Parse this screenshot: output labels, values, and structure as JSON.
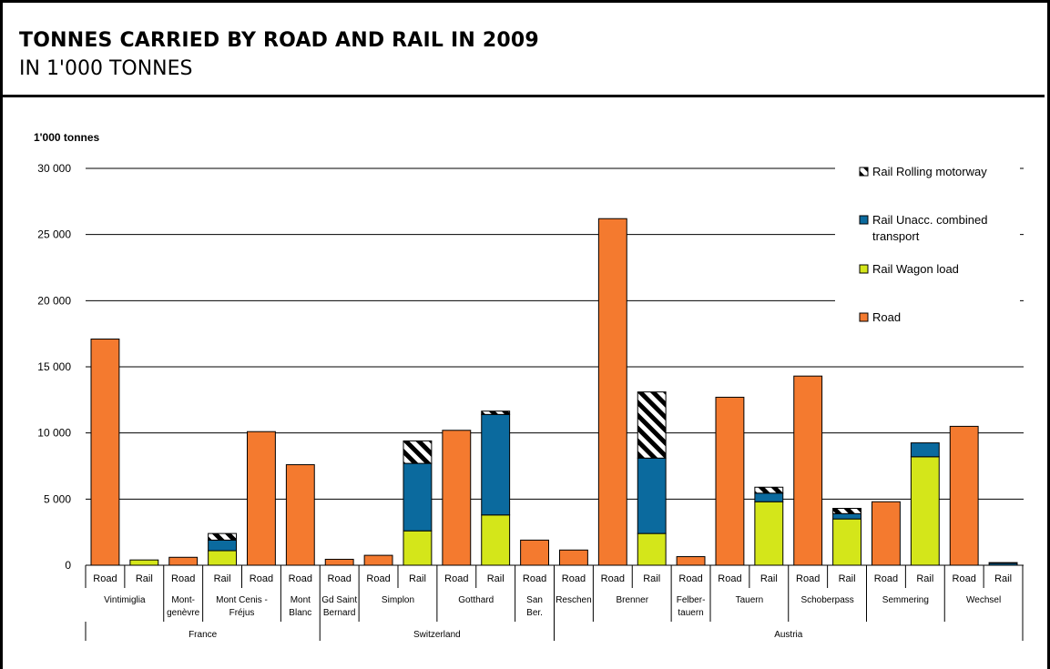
{
  "header": {
    "title": "TONNES CARRIED BY ROAD AND RAIL IN 2009",
    "subtitle": "IN 1'000 TONNES"
  },
  "chart_data": {
    "type": "bar",
    "stacked": true,
    "unit_label": "1'000 tonnes",
    "ylim": [
      0,
      30000
    ],
    "yticks": [
      0,
      5000,
      10000,
      15000,
      20000,
      25000,
      30000
    ],
    "ytick_labels": [
      "0",
      "5 000",
      "10 000",
      "15 000",
      "20 000",
      "25 000",
      "30 000"
    ],
    "grid": true,
    "legend_position": "right",
    "legend": [
      {
        "key": "rolling",
        "label": "Rail Rolling motorway"
      },
      {
        "key": "unacc",
        "label": "Rail Unacc. combined transport"
      },
      {
        "key": "wagon",
        "label": "Rail Wagon load"
      },
      {
        "key": "road",
        "label": "Road"
      }
    ],
    "colors": {
      "road": "#f47a2f",
      "wagon": "#d4e61a",
      "unacc": "#0b6a9e",
      "rolling": "hatch-black-white"
    },
    "bars": [
      {
        "label": "Road",
        "road": 17100
      },
      {
        "label": "Rail",
        "wagon": 400
      },
      {
        "label": "Road",
        "road": 600
      },
      {
        "label": "Rail",
        "wagon": 1100,
        "unacc": 800,
        "rolling": 500
      },
      {
        "label": "Road",
        "road": 10100
      },
      {
        "label": "Road",
        "road": 7600
      },
      {
        "label": "Road",
        "road": 450
      },
      {
        "label": "Road",
        "road": 750
      },
      {
        "label": "Rail",
        "wagon": 2600,
        "unacc": 5100,
        "rolling": 1700
      },
      {
        "label": "Road",
        "road": 10200
      },
      {
        "label": "Rail",
        "wagon": 3800,
        "unacc": 7600,
        "rolling": 250
      },
      {
        "label": "Road",
        "road": 1900
      },
      {
        "label": "Road",
        "road": 1150
      },
      {
        "label": "Road",
        "road": 26200
      },
      {
        "label": "Rail",
        "wagon": 2400,
        "unacc": 5700,
        "rolling": 5000
      },
      {
        "label": "Road",
        "road": 650
      },
      {
        "label": "Road",
        "road": 12700
      },
      {
        "label": "Rail",
        "wagon": 4800,
        "unacc": 650,
        "rolling": 450
      },
      {
        "label": "Road",
        "road": 14300
      },
      {
        "label": "Rail",
        "wagon": 3500,
        "unacc": 400,
        "rolling": 400
      },
      {
        "label": "Road",
        "road": 4800
      },
      {
        "label": "Rail",
        "wagon": 8200,
        "unacc": 1050
      },
      {
        "label": "Road",
        "road": 10500
      },
      {
        "label": "Rail",
        "unacc": 150,
        "rolling": 50
      }
    ],
    "passes": [
      {
        "label": [
          "Vintimiglia"
        ],
        "bars": 2
      },
      {
        "label": [
          "Mont-",
          "genèvre"
        ],
        "bars": 1
      },
      {
        "label": [
          "Mont Cenis -",
          "Fréjus"
        ],
        "bars": 2
      },
      {
        "label": [
          "Mont",
          "Blanc"
        ],
        "bars": 1
      },
      {
        "label": [
          "Gd Saint",
          "Bernard"
        ],
        "bars": 1
      },
      {
        "label": [
          "Simplon"
        ],
        "bars": 2
      },
      {
        "label": [
          "Gotthard"
        ],
        "bars": 2
      },
      {
        "label": [
          "San",
          "Ber."
        ],
        "bars": 1
      },
      {
        "label": [
          "Reschen"
        ],
        "bars": 1
      },
      {
        "label": [
          "Brenner"
        ],
        "bars": 2
      },
      {
        "label": [
          "Felber-",
          "tauern"
        ],
        "bars": 1
      },
      {
        "label": [
          "Tauern"
        ],
        "bars": 2
      },
      {
        "label": [
          "Schoberpass"
        ],
        "bars": 2
      },
      {
        "label": [
          "Semmering"
        ],
        "bars": 2
      },
      {
        "label": [
          "Wechsel"
        ],
        "bars": 2
      }
    ],
    "countries": [
      {
        "label": "France",
        "bars": 6
      },
      {
        "label": "Switzerland",
        "bars": 6
      },
      {
        "label": "Austria",
        "bars": 12
      }
    ]
  }
}
